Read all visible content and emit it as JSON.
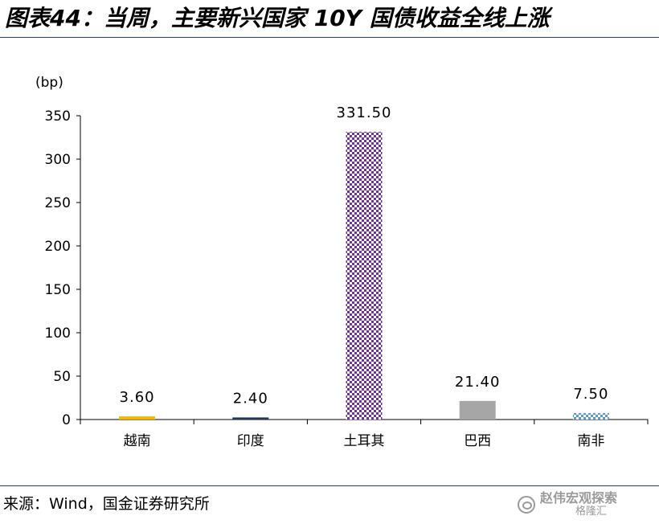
{
  "figure": {
    "title": "图表44：当周，主要新兴国家 10Y 国债收益全线上涨",
    "source": "来源：Wind，国金证券研究所",
    "watermark_main": "赵伟宏观探索",
    "watermark_sub": "格隆汇"
  },
  "chart_data": {
    "type": "bar",
    "title": "",
    "unit": "(bp)",
    "categories": [
      "越南",
      "印度",
      "土耳其",
      "巴西",
      "南非"
    ],
    "values": [
      3.6,
      2.4,
      331.5,
      21.4,
      7.5
    ],
    "value_labels": [
      "3.60",
      "2.40",
      "331.50",
      "21.40",
      "7.50"
    ],
    "ylim": [
      0,
      350
    ],
    "yticks": [
      0,
      50,
      100,
      150,
      200,
      250,
      300,
      350
    ],
    "ytick_labels": [
      "0",
      "50",
      "100",
      "150",
      "200",
      "250",
      "300",
      "350"
    ],
    "grid": false,
    "legend": "none",
    "bar_colors": [
      "#f2b800",
      "#1f3a5f",
      "#7030a0",
      "#a6a6a6",
      "#5b9bd5"
    ],
    "bar_patterns": [
      "solid",
      "solid",
      "checker",
      "solid",
      "checker"
    ]
  }
}
